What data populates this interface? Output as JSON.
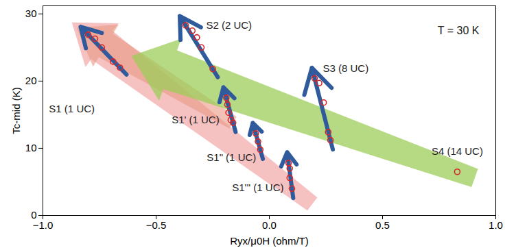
{
  "chart_data": {
    "type": "scatter",
    "xlabel": "Ryx/μ0H (ohm/T)",
    "ylabel": "Tc-mid (K)",
    "xlim": [
      -1.0,
      1.0
    ],
    "ylim": [
      0,
      31.2
    ],
    "xticks": [
      {
        "value": -1.0,
        "label": "−1.0"
      },
      {
        "value": -0.5,
        "label": "−0.5"
      },
      {
        "value": 0,
        "label": "0.0"
      },
      {
        "value": 0.5,
        "label": "0.5"
      },
      {
        "value": 1.0,
        "label": "1.0"
      }
    ],
    "yticks": [
      0,
      10,
      20,
      30
    ],
    "grid": false,
    "marker": "circle",
    "color": "#d62728",
    "annotations": [
      "T = 30 K"
    ],
    "series": [
      {
        "name": "S1 (1 UC)",
        "x": [
          -0.8,
          -0.77,
          -0.74,
          -0.69,
          -0.66
        ],
        "y": [
          26.9,
          26.3,
          25.0,
          22.9,
          22.0
        ]
      },
      {
        "name": "S2 (2 UC)",
        "x": [
          -0.37,
          -0.34,
          -0.32,
          -0.3,
          -0.25
        ],
        "y": [
          28.3,
          27.5,
          26.5,
          25.0,
          21.8
        ]
      },
      {
        "name": "S1' (1 UC)",
        "x": [
          -0.19,
          -0.185,
          -0.18,
          -0.17,
          -0.16
        ],
        "y": [
          17.5,
          16.5,
          15.3,
          14.2,
          13.8
        ]
      },
      {
        "name": "S1\" (1 UC)",
        "x": [
          -0.06,
          -0.05,
          -0.04
        ],
        "y": [
          12.2,
          11.0,
          9.8
        ]
      },
      {
        "name": "S1''' (1 UC)",
        "x": [
          0.085,
          0.09,
          0.09,
          0.1
        ],
        "y": [
          7.8,
          7.0,
          5.6,
          4.0
        ]
      },
      {
        "name": "S3 (8 UC)",
        "x": [
          0.2,
          0.22,
          0.24,
          0.26,
          0.27
        ],
        "y": [
          20.4,
          19.7,
          16.8,
          12.4,
          11.2
        ]
      },
      {
        "name": "S4 (14 UC)",
        "x": [
          0.83
        ],
        "y": [
          6.5
        ]
      }
    ]
  }
}
